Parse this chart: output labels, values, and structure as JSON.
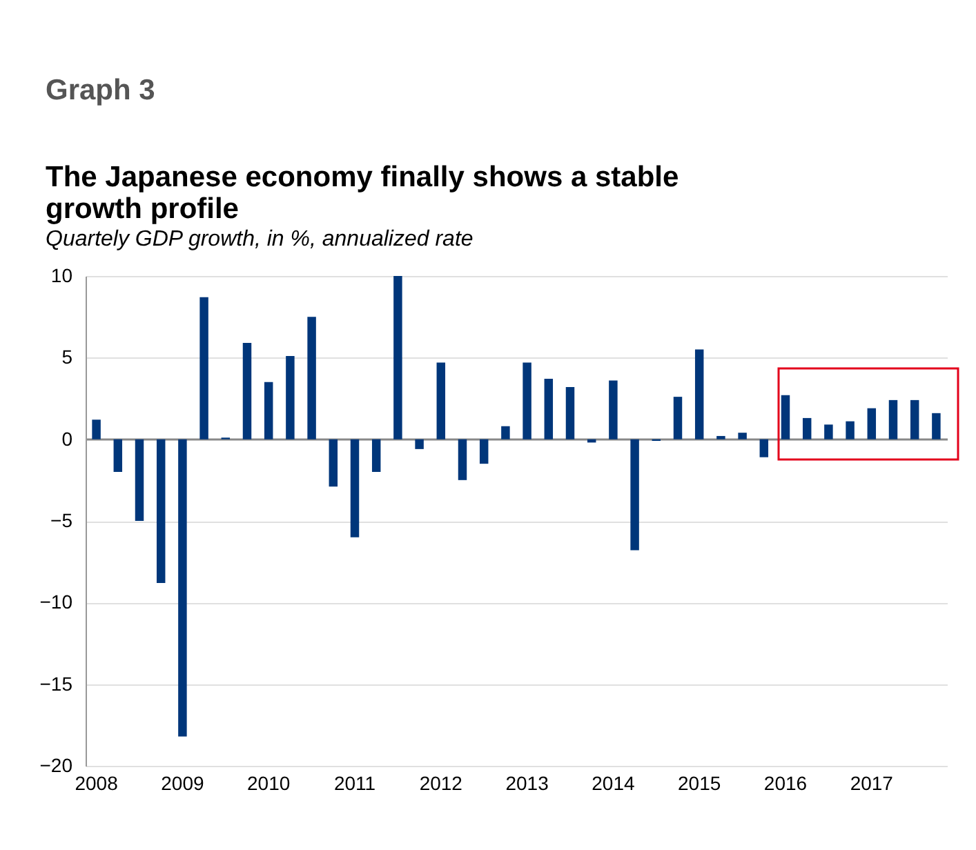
{
  "chart_data": {
    "type": "bar",
    "title": "The Japanese economy finally shows a stable growth profile",
    "subtitle": "Quartely GDP growth, in %, annualized rate",
    "annotations": [
      "Graph 3"
    ],
    "categories": [
      "2008",
      null,
      null,
      null,
      "2009",
      null,
      null,
      null,
      "2010",
      null,
      null,
      null,
      "2011",
      null,
      null,
      null,
      "2012",
      null,
      null,
      null,
      "2013",
      null,
      null,
      null,
      "2014",
      null,
      null,
      null,
      "2015",
      null,
      null,
      null,
      "2016",
      null,
      null,
      null,
      "2017",
      null,
      null,
      null
    ],
    "values": [
      1.2,
      -2.0,
      -5.0,
      -8.8,
      -18.2,
      8.7,
      0.1,
      5.9,
      3.5,
      5.1,
      7.5,
      -2.9,
      -6.0,
      -2.0,
      10.0,
      -0.6,
      4.7,
      -2.5,
      -1.5,
      0.8,
      4.7,
      3.7,
      3.2,
      -0.2,
      3.6,
      -6.8,
      -0.1,
      2.6,
      5.5,
      0.2,
      0.4,
      -1.1,
      2.7,
      1.3,
      0.9,
      1.1,
      1.9,
      2.4,
      2.4,
      1.6
    ],
    "color": "#00367a",
    "ylim": [
      -20,
      10
    ],
    "yticks": [
      -20,
      -15,
      -10,
      -5,
      0,
      5,
      10
    ],
    "grid": "y"
  }
}
